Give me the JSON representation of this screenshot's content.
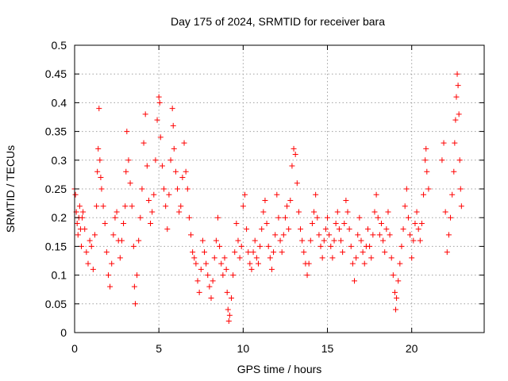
{
  "chart_data": {
    "type": "scatter",
    "title": "Day 175 of 2024, SRMTID for receiver bara",
    "xlabel": "GPS time / hours",
    "ylabel": "SRMTID / TECUs",
    "xlim": [
      0,
      24.3
    ],
    "ylim": [
      0,
      0.5
    ],
    "x_ticks": [
      0,
      5,
      10,
      15,
      20
    ],
    "x_tick_labels": [
      "0",
      "5",
      "10",
      "15",
      "20"
    ],
    "y_ticks": [
      0,
      0.05,
      0.1,
      0.15,
      0.2,
      0.25,
      0.3,
      0.35,
      0.4,
      0.45,
      0.5
    ],
    "y_tick_labels": [
      "0",
      "0.05",
      "0.1",
      "0.15",
      "0.2",
      "0.25",
      "0.3",
      "0.35",
      "0.4",
      "0.45",
      "0.5"
    ],
    "grid": true,
    "marker": "plus",
    "color": "#ff0000",
    "series": [
      {
        "name": "SRMTID",
        "points": [
          [
            0.0,
            0.25
          ],
          [
            0.05,
            0.24
          ],
          [
            0.1,
            0.21
          ],
          [
            0.15,
            0.19
          ],
          [
            0.2,
            0.17
          ],
          [
            0.25,
            0.2
          ],
          [
            0.3,
            0.22
          ],
          [
            0.35,
            0.18
          ],
          [
            0.4,
            0.15
          ],
          [
            0.45,
            0.2
          ],
          [
            0.5,
            0.21
          ],
          [
            0.6,
            0.18
          ],
          [
            0.7,
            0.14
          ],
          [
            0.8,
            0.12
          ],
          [
            0.9,
            0.16
          ],
          [
            1.0,
            0.15
          ],
          [
            1.1,
            0.11
          ],
          [
            1.2,
            0.17
          ],
          [
            1.3,
            0.22
          ],
          [
            1.35,
            0.28
          ],
          [
            1.4,
            0.32
          ],
          [
            1.45,
            0.39
          ],
          [
            1.5,
            0.3
          ],
          [
            1.55,
            0.27
          ],
          [
            1.6,
            0.25
          ],
          [
            1.7,
            0.22
          ],
          [
            1.8,
            0.19
          ],
          [
            1.9,
            0.14
          ],
          [
            2.0,
            0.1
          ],
          [
            2.1,
            0.08
          ],
          [
            2.2,
            0.12
          ],
          [
            2.3,
            0.17
          ],
          [
            2.4,
            0.2
          ],
          [
            2.5,
            0.21
          ],
          [
            2.6,
            0.16
          ],
          [
            2.7,
            0.13
          ],
          [
            2.8,
            0.16
          ],
          [
            2.9,
            0.19
          ],
          [
            3.0,
            0.22
          ],
          [
            3.05,
            0.28
          ],
          [
            3.1,
            0.35
          ],
          [
            3.2,
            0.3
          ],
          [
            3.3,
            0.26
          ],
          [
            3.4,
            0.22
          ],
          [
            3.5,
            0.15
          ],
          [
            3.55,
            0.08
          ],
          [
            3.6,
            0.05
          ],
          [
            3.7,
            0.1
          ],
          [
            3.8,
            0.16
          ],
          [
            3.9,
            0.2
          ],
          [
            4.0,
            0.25
          ],
          [
            4.1,
            0.33
          ],
          [
            4.2,
            0.38
          ],
          [
            4.3,
            0.29
          ],
          [
            4.4,
            0.23
          ],
          [
            4.5,
            0.19
          ],
          [
            4.6,
            0.21
          ],
          [
            4.7,
            0.24
          ],
          [
            4.8,
            0.3
          ],
          [
            4.9,
            0.37
          ],
          [
            5.0,
            0.41
          ],
          [
            5.05,
            0.4
          ],
          [
            5.1,
            0.34
          ],
          [
            5.2,
            0.29
          ],
          [
            5.3,
            0.25
          ],
          [
            5.4,
            0.22
          ],
          [
            5.5,
            0.18
          ],
          [
            5.6,
            0.24
          ],
          [
            5.7,
            0.3
          ],
          [
            5.8,
            0.39
          ],
          [
            5.85,
            0.36
          ],
          [
            5.9,
            0.32
          ],
          [
            6.0,
            0.28
          ],
          [
            6.1,
            0.25
          ],
          [
            6.2,
            0.21
          ],
          [
            6.3,
            0.22
          ],
          [
            6.4,
            0.27
          ],
          [
            6.5,
            0.33
          ],
          [
            6.6,
            0.28
          ],
          [
            6.7,
            0.25
          ],
          [
            6.8,
            0.2
          ],
          [
            6.9,
            0.17
          ],
          [
            7.0,
            0.14
          ],
          [
            7.1,
            0.13
          ],
          [
            7.2,
            0.12
          ],
          [
            7.3,
            0.09
          ],
          [
            7.4,
            0.07
          ],
          [
            7.5,
            0.11
          ],
          [
            7.6,
            0.16
          ],
          [
            7.7,
            0.14
          ],
          [
            7.8,
            0.12
          ],
          [
            7.9,
            0.1
          ],
          [
            8.0,
            0.08
          ],
          [
            8.1,
            0.06
          ],
          [
            8.2,
            0.09
          ],
          [
            8.3,
            0.13
          ],
          [
            8.4,
            0.16
          ],
          [
            8.5,
            0.2
          ],
          [
            8.6,
            0.15
          ],
          [
            8.7,
            0.12
          ],
          [
            8.8,
            0.1
          ],
          [
            8.9,
            0.13
          ],
          [
            9.0,
            0.11
          ],
          [
            9.05,
            0.07
          ],
          [
            9.1,
            0.04
          ],
          [
            9.15,
            0.02
          ],
          [
            9.2,
            0.03
          ],
          [
            9.3,
            0.06
          ],
          [
            9.4,
            0.1
          ],
          [
            9.5,
            0.14
          ],
          [
            9.6,
            0.19
          ],
          [
            9.7,
            0.16
          ],
          [
            9.8,
            0.13
          ],
          [
            9.9,
            0.15
          ],
          [
            10.0,
            0.22
          ],
          [
            10.1,
            0.24
          ],
          [
            10.2,
            0.18
          ],
          [
            10.3,
            0.14
          ],
          [
            10.4,
            0.12
          ],
          [
            10.5,
            0.11
          ],
          [
            10.6,
            0.14
          ],
          [
            10.7,
            0.16
          ],
          [
            10.8,
            0.13
          ],
          [
            10.9,
            0.12
          ],
          [
            11.0,
            0.15
          ],
          [
            11.1,
            0.18
          ],
          [
            11.2,
            0.21
          ],
          [
            11.3,
            0.23
          ],
          [
            11.4,
            0.19
          ],
          [
            11.5,
            0.15
          ],
          [
            11.6,
            0.13
          ],
          [
            11.7,
            0.11
          ],
          [
            11.8,
            0.14
          ],
          [
            11.9,
            0.17
          ],
          [
            12.0,
            0.24
          ],
          [
            12.1,
            0.2
          ],
          [
            12.2,
            0.16
          ],
          [
            12.3,
            0.14
          ],
          [
            12.4,
            0.17
          ],
          [
            12.5,
            0.2
          ],
          [
            12.6,
            0.22
          ],
          [
            12.7,
            0.18
          ],
          [
            12.8,
            0.23
          ],
          [
            12.9,
            0.29
          ],
          [
            13.0,
            0.32
          ],
          [
            13.1,
            0.31
          ],
          [
            13.2,
            0.26
          ],
          [
            13.3,
            0.21
          ],
          [
            13.4,
            0.18
          ],
          [
            13.5,
            0.16
          ],
          [
            13.6,
            0.14
          ],
          [
            13.7,
            0.12
          ],
          [
            13.8,
            0.1
          ],
          [
            13.9,
            0.12
          ],
          [
            14.0,
            0.16
          ],
          [
            14.1,
            0.19
          ],
          [
            14.2,
            0.21
          ],
          [
            14.3,
            0.24
          ],
          [
            14.4,
            0.2
          ],
          [
            14.5,
            0.17
          ],
          [
            14.6,
            0.15
          ],
          [
            14.7,
            0.13
          ],
          [
            14.8,
            0.16
          ],
          [
            14.9,
            0.18
          ],
          [
            15.0,
            0.2
          ],
          [
            15.1,
            0.17
          ],
          [
            15.2,
            0.15
          ],
          [
            15.3,
            0.13
          ],
          [
            15.4,
            0.16
          ],
          [
            15.5,
            0.19
          ],
          [
            15.6,
            0.21
          ],
          [
            15.7,
            0.18
          ],
          [
            15.8,
            0.16
          ],
          [
            15.9,
            0.14
          ],
          [
            16.0,
            0.19
          ],
          [
            16.1,
            0.23
          ],
          [
            16.2,
            0.21
          ],
          [
            16.3,
            0.18
          ],
          [
            16.4,
            0.15
          ],
          [
            16.5,
            0.12
          ],
          [
            16.6,
            0.09
          ],
          [
            16.7,
            0.13
          ],
          [
            16.8,
            0.17
          ],
          [
            16.9,
            0.2
          ],
          [
            17.0,
            0.16
          ],
          [
            17.1,
            0.14
          ],
          [
            17.2,
            0.12
          ],
          [
            17.3,
            0.15
          ],
          [
            17.4,
            0.18
          ],
          [
            17.5,
            0.15
          ],
          [
            17.6,
            0.13
          ],
          [
            17.7,
            0.17
          ],
          [
            17.8,
            0.21
          ],
          [
            17.9,
            0.24
          ],
          [
            18.0,
            0.2
          ],
          [
            18.1,
            0.17
          ],
          [
            18.2,
            0.19
          ],
          [
            18.3,
            0.16
          ],
          [
            18.4,
            0.14
          ],
          [
            18.5,
            0.18
          ],
          [
            18.6,
            0.21
          ],
          [
            18.7,
            0.17
          ],
          [
            18.8,
            0.13
          ],
          [
            18.9,
            0.1
          ],
          [
            19.0,
            0.07
          ],
          [
            19.05,
            0.04
          ],
          [
            19.1,
            0.06
          ],
          [
            19.2,
            0.09
          ],
          [
            19.3,
            0.12
          ],
          [
            19.4,
            0.15
          ],
          [
            19.5,
            0.18
          ],
          [
            19.6,
            0.22
          ],
          [
            19.7,
            0.25
          ],
          [
            19.8,
            0.2
          ],
          [
            19.9,
            0.17
          ],
          [
            20.0,
            0.13
          ],
          [
            20.1,
            0.16
          ],
          [
            20.2,
            0.19
          ],
          [
            20.3,
            0.21
          ],
          [
            20.4,
            0.18
          ],
          [
            20.5,
            0.16
          ],
          [
            20.6,
            0.19
          ],
          [
            20.7,
            0.24
          ],
          [
            20.8,
            0.3
          ],
          [
            20.85,
            0.32
          ],
          [
            20.9,
            0.28
          ],
          [
            21.0,
            0.25
          ],
          [
            21.8,
            0.3
          ],
          [
            21.9,
            0.33
          ],
          [
            22.0,
            0.21
          ],
          [
            22.1,
            0.14
          ],
          [
            22.2,
            0.17
          ],
          [
            22.3,
            0.2
          ],
          [
            22.4,
            0.24
          ],
          [
            22.5,
            0.28
          ],
          [
            22.55,
            0.33
          ],
          [
            22.6,
            0.37
          ],
          [
            22.65,
            0.41
          ],
          [
            22.7,
            0.45
          ],
          [
            22.75,
            0.43
          ],
          [
            22.8,
            0.38
          ],
          [
            22.85,
            0.3
          ],
          [
            22.9,
            0.25
          ],
          [
            22.95,
            0.22
          ]
        ]
      }
    ]
  }
}
